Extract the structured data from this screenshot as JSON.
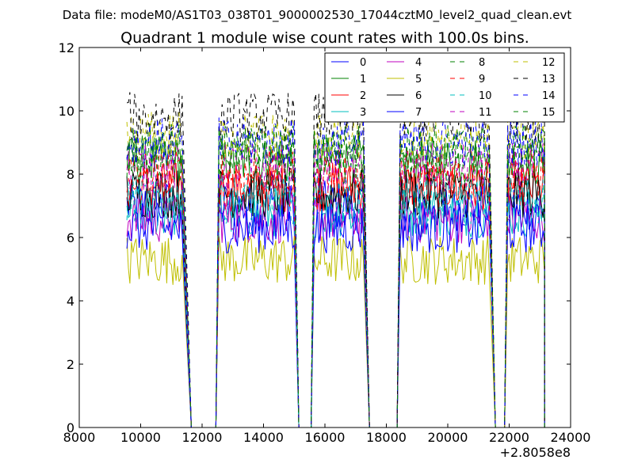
{
  "header": {
    "data_file": "Data file: modeM0/AS1T03_038T01_9000002530_17044cztM0_level2_quad_clean.evt"
  },
  "chart_data": {
    "type": "line",
    "title": "Quadrant 1 module wise count rates with 100.0s bins.",
    "xlabel": "",
    "ylabel": "",
    "x_offset_label": "+2.8058e8",
    "xlim": [
      8000,
      24000
    ],
    "ylim": [
      0,
      12
    ],
    "x_ticks": [
      8000,
      10000,
      12000,
      14000,
      16000,
      18000,
      20000,
      22000,
      24000
    ],
    "x_tick_labels": [
      "8000",
      "10000",
      "12000",
      "14000",
      "16000",
      "18000",
      "20000",
      "22000",
      "24000"
    ],
    "y_ticks": [
      0,
      2,
      4,
      6,
      8,
      10,
      12
    ],
    "y_tick_labels": [
      "0",
      "2",
      "4",
      "6",
      "8",
      "10",
      "12"
    ],
    "grid": false,
    "legend_placement": "top-right",
    "segments": [
      {
        "x_start": 9550,
        "x_end": 11350,
        "drop_to": 11650,
        "rise_from": 12450
      },
      {
        "x_start": 12550,
        "x_end": 15000,
        "drop_to": 15150,
        "rise_from": 15550
      },
      {
        "x_start": 15650,
        "x_end": 17250,
        "drop_to": 17450,
        "rise_from": 18350
      },
      {
        "x_start": 18450,
        "x_end": 21350,
        "drop_to": 21550,
        "rise_from": 21850
      },
      {
        "x_start": 21950,
        "x_end": 23150,
        "drop_to": 23150,
        "rise_from": null
      }
    ],
    "series": [
      {
        "name": "0",
        "color": "#0000ff",
        "dash": "solid",
        "mean": 7.0
      },
      {
        "name": "1",
        "color": "#008000",
        "dash": "solid",
        "mean": 8.4
      },
      {
        "name": "2",
        "color": "#ff0000",
        "dash": "solid",
        "mean": 7.6
      },
      {
        "name": "3",
        "color": "#00bfbf",
        "dash": "solid",
        "mean": 6.8
      },
      {
        "name": "4",
        "color": "#bf00bf",
        "dash": "solid",
        "mean": 6.6
      },
      {
        "name": "5",
        "color": "#bfbf00",
        "dash": "solid",
        "mean": 5.3
      },
      {
        "name": "6",
        "color": "#000000",
        "dash": "solid",
        "mean": 7.4
      },
      {
        "name": "7",
        "color": "#0000ff",
        "dash": "solid",
        "mean": 6.3
      },
      {
        "name": "8",
        "color": "#008000",
        "dash": "dashed",
        "mean": 8.6
      },
      {
        "name": "9",
        "color": "#ff0000",
        "dash": "dashed",
        "mean": 8.0
      },
      {
        "name": "10",
        "color": "#00bfbf",
        "dash": "dashed",
        "mean": 7.2
      },
      {
        "name": "11",
        "color": "#bf00bf",
        "dash": "dashed",
        "mean": 8.2
      },
      {
        "name": "12",
        "color": "#bfbf00",
        "dash": "dashed",
        "mean": 9.2
      },
      {
        "name": "13",
        "color": "#000000",
        "dash": "dashed",
        "mean": 9.8
      },
      {
        "name": "14",
        "color": "#0000ff",
        "dash": "dashed",
        "mean": 9.0
      },
      {
        "name": "15",
        "color": "#008000",
        "dash": "dashed",
        "mean": 8.8
      }
    ]
  }
}
